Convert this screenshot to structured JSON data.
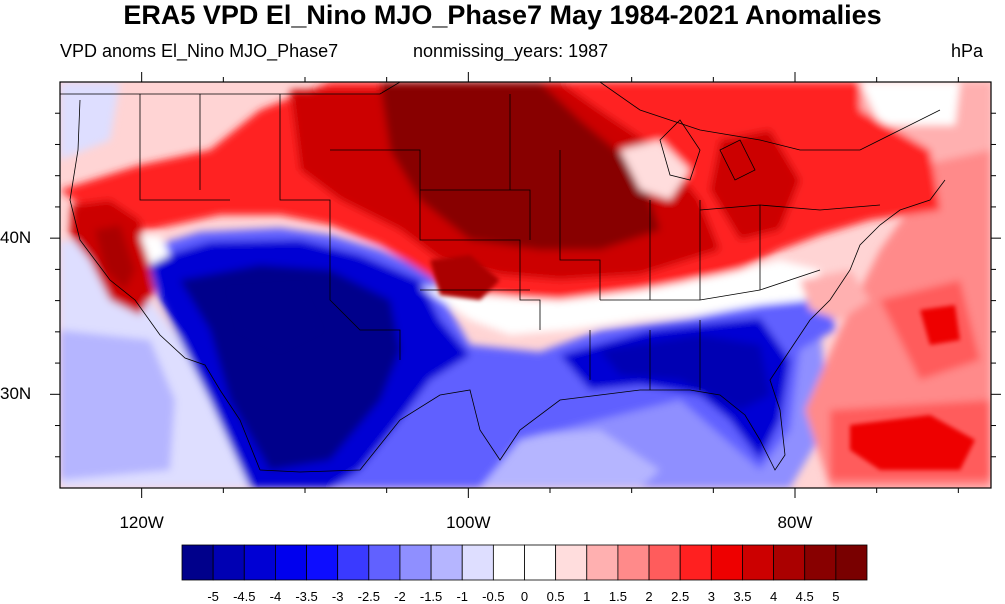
{
  "title": "ERA5 VPD El_Nino MJO_Phase7 May 1984-2021 Anomalies",
  "subtitle_left": "VPD anoms El_Nino MJO_Phase7",
  "subtitle_center": "nonmissing_years: 1987",
  "units": "hPa",
  "map": {
    "projection": "cylindrical equidistant",
    "region": "Contiguous United States",
    "lon_range": [
      -125,
      -68
    ],
    "lat_range": [
      24,
      50
    ],
    "lat_ticks": [
      {
        "value": 40,
        "label": "40N"
      },
      {
        "value": 30,
        "label": "30N"
      }
    ],
    "lon_ticks": [
      {
        "value": -120,
        "label": "120W"
      },
      {
        "value": -100,
        "label": "100W"
      },
      {
        "value": -80,
        "label": "80W"
      }
    ],
    "pattern_regions": [
      {
        "region": "Northern Plains / Upper Midwest",
        "anomaly": "strong positive (>5 hPa)"
      },
      {
        "region": "California coast",
        "anomaly": "positive (~4 hPa)"
      },
      {
        "region": "Southwest / Texas / Southeast",
        "anomaly": "strong negative (<-5 hPa)"
      },
      {
        "region": "Western Atlantic",
        "anomaly": "positive (~3.5 hPa)"
      },
      {
        "region": "Eastern Pacific",
        "anomaly": "weak negative (~-1 hPa)"
      }
    ]
  },
  "colorbar": {
    "labels": [
      "-5",
      "-4.5",
      "-4",
      "-3.5",
      "-3",
      "-2.5",
      "-2",
      "-1.5",
      "-1",
      "-0.5",
      "0",
      "0.5",
      "1",
      "1.5",
      "2",
      "2.5",
      "3",
      "3.5",
      "4",
      "4.5",
      "5"
    ],
    "colors": [
      "#00008b",
      "#0000b3",
      "#0000d4",
      "#0000ee",
      "#0d0dff",
      "#3a3aff",
      "#6161ff",
      "#8f8fff",
      "#b5b5ff",
      "#dedeff",
      "#ffffff",
      "#ffffff",
      "#ffdddd",
      "#ffb0b0",
      "#ff8a8a",
      "#ff5c5c",
      "#ff2020",
      "#ee0000",
      "#cc0000",
      "#aa0000",
      "#880000",
      "#790000"
    ]
  }
}
